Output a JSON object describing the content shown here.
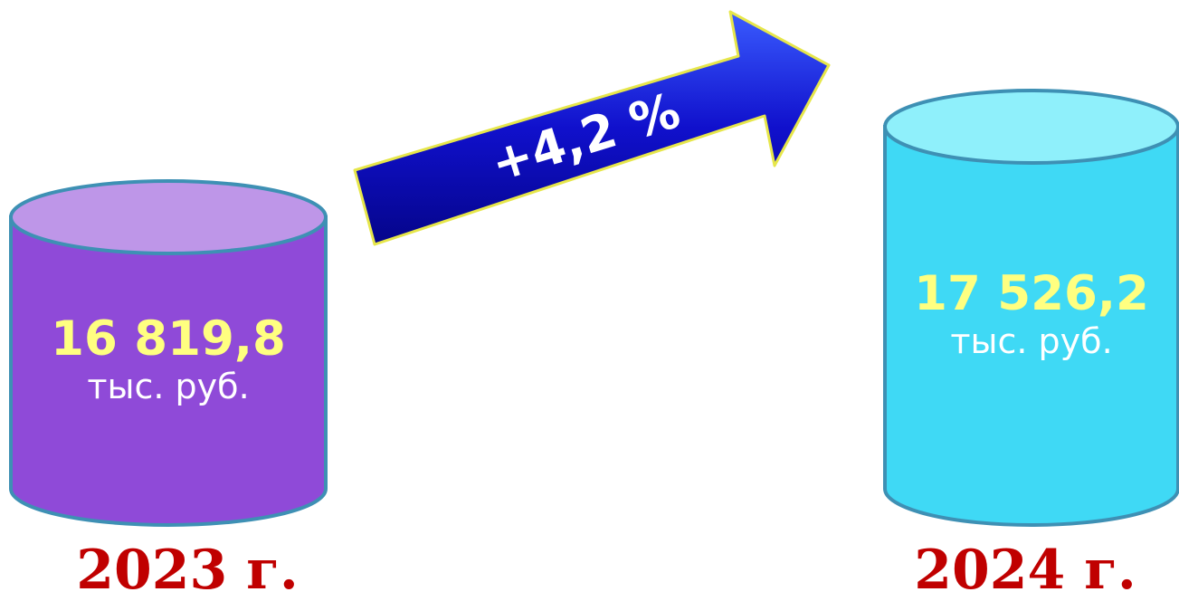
{
  "chart_data": {
    "type": "bar",
    "title": "",
    "categories": [
      "2023 г.",
      "2024 г."
    ],
    "values": [
      16819.8,
      17526.2
    ],
    "value_labels": [
      "16 819,8",
      "17 526,2"
    ],
    "unit": "тыс. руб.",
    "change_label": "+4,2 %",
    "ylim": [
      0,
      17526.2
    ],
    "grid": false,
    "legend": "none",
    "colors": {
      "cylinder_2023_body": "#8f4ad8",
      "cylinder_2023_top": "#be96e8",
      "cylinder_2024_body": "#3fd9f5",
      "cylinder_2024_top": "#8ff0fb",
      "cylinder_outline": "#3e90b4",
      "value_text": "#ffff80",
      "unit_text": "#ffffff",
      "year_text": "#c00000",
      "arrow_fill": "#1010cc",
      "arrow_outline": "#e6e64a"
    }
  }
}
